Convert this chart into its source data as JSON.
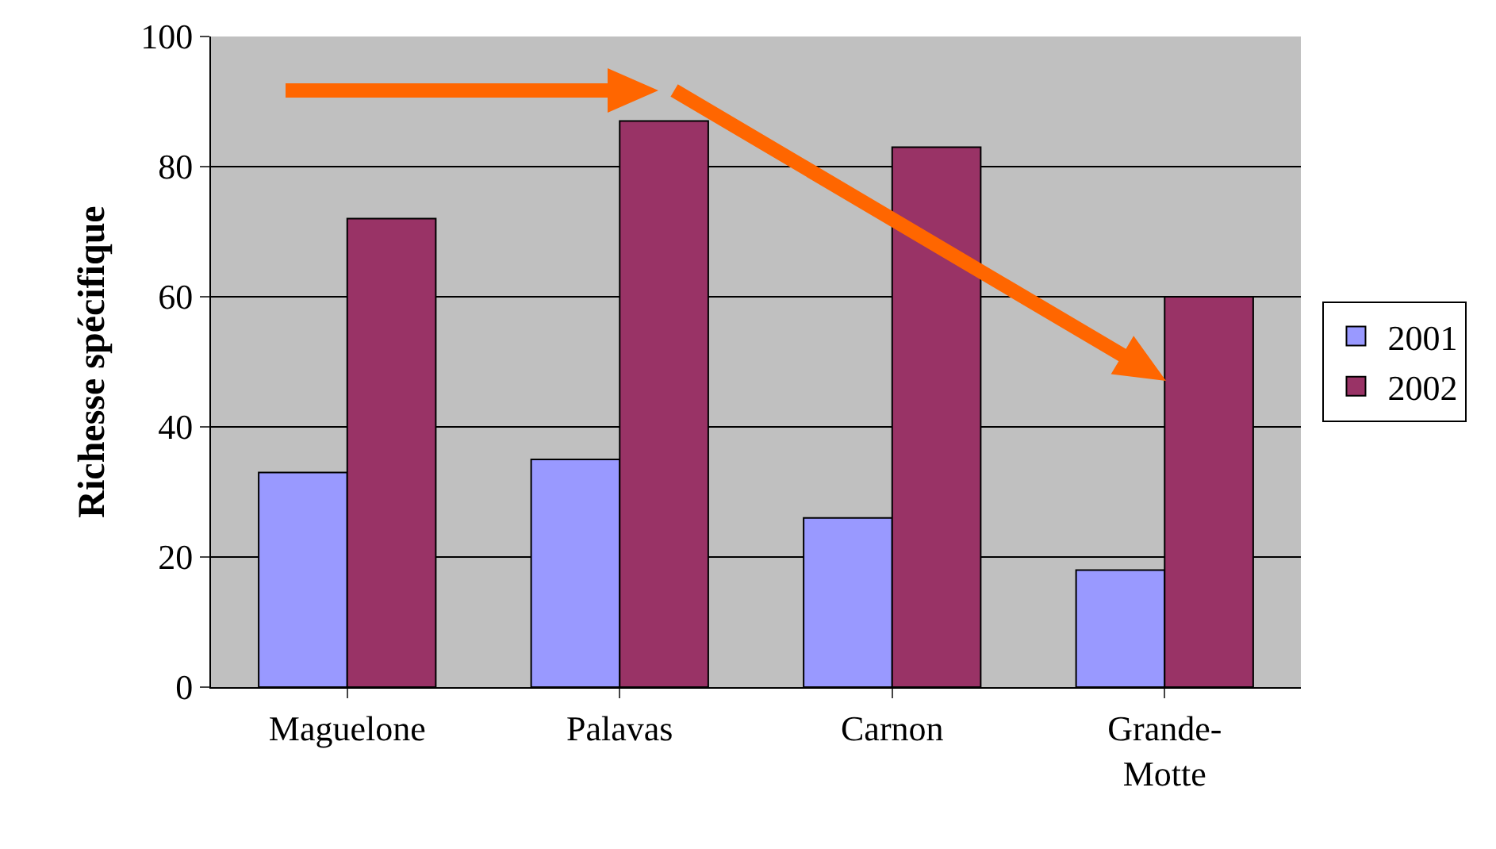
{
  "chart_data": {
    "type": "bar",
    "ylabel": "Richesse spécifique",
    "categories": [
      "Maguelone",
      "Palavas",
      "Carnon",
      "Grande-Motte"
    ],
    "series": [
      {
        "name": "2001",
        "color": "#9999ff",
        "values": [
          33,
          35,
          26,
          18
        ]
      },
      {
        "name": "2002",
        "color": "#993366",
        "values": [
          72,
          87,
          83,
          60
        ]
      }
    ],
    "ylim": [
      0,
      100
    ],
    "yticks": [
      0,
      20,
      40,
      60,
      80,
      100
    ],
    "grid": "y",
    "legend": "right"
  }
}
